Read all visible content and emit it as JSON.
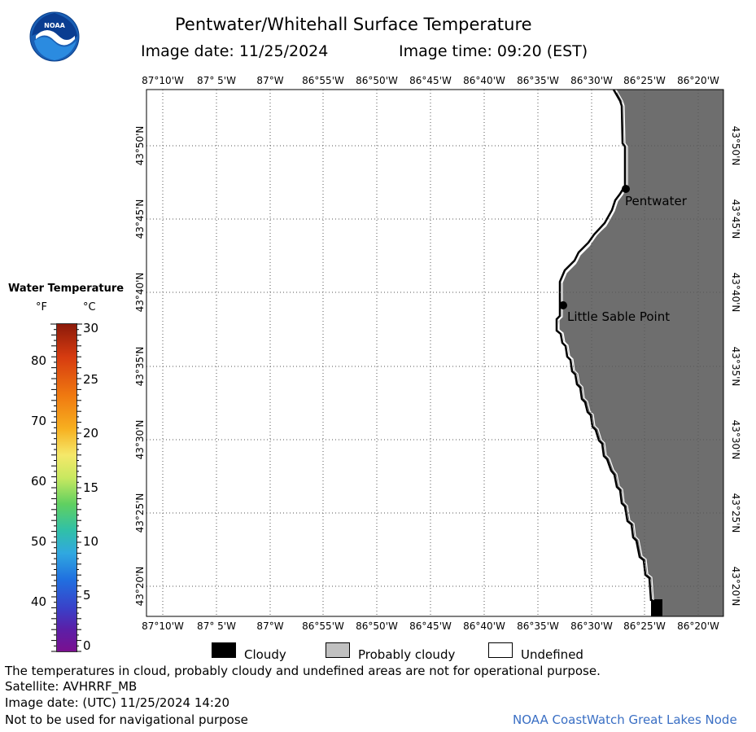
{
  "header": {
    "title": "Pentwater/Whitehall Surface Temperature",
    "image_date_label": "Image date: 11/25/2024",
    "image_time_label": "Image time: 09:20 (EST)",
    "logo_text": "NOAA"
  },
  "map": {
    "lon_ticks": [
      "87°10'W",
      "87° 5'W",
      "87°W",
      "86°55'W",
      "86°50'W",
      "86°45'W",
      "86°40'W",
      "86°35'W",
      "86°30'W",
      "86°25'W",
      "86°20'W"
    ],
    "lat_ticks": [
      "43°50'N",
      "43°45'N",
      "43°40'N",
      "43°35'N",
      "43°30'N",
      "43°25'N",
      "43°20'N"
    ],
    "places": [
      {
        "name": "Pentwater"
      },
      {
        "name": "Little Sable Point"
      }
    ],
    "colors": {
      "land": "#6e6e6e",
      "water": "#ffffff",
      "grid": "#444444",
      "coast": "#000000"
    }
  },
  "legend": {
    "title": "Water Temperature",
    "unit_f": "°F",
    "unit_c": "°C",
    "f_ticks": [
      "80",
      "70",
      "60",
      "50",
      "40"
    ],
    "c_ticks": [
      "30",
      "25",
      "20",
      "15",
      "10",
      "5",
      "0"
    ]
  },
  "key": {
    "cloudy": "Cloudy",
    "probably_cloudy": "Probably cloudy",
    "undefined": "Undefined",
    "colors": {
      "cloudy": "#000000",
      "probably_cloudy": "#c0c0c0",
      "undefined": "#ffffff"
    }
  },
  "footer": {
    "line1": "The temperatures in cloud, probably cloudy and undefined areas are not for operational purpose.",
    "line2": "Satellite: AVHRRF_MB",
    "line3": "Image date: (UTC) 11/25/2024  14:20",
    "line4": "Not to be used for navigational purpose",
    "credit": "NOAA CoastWatch Great Lakes Node"
  }
}
